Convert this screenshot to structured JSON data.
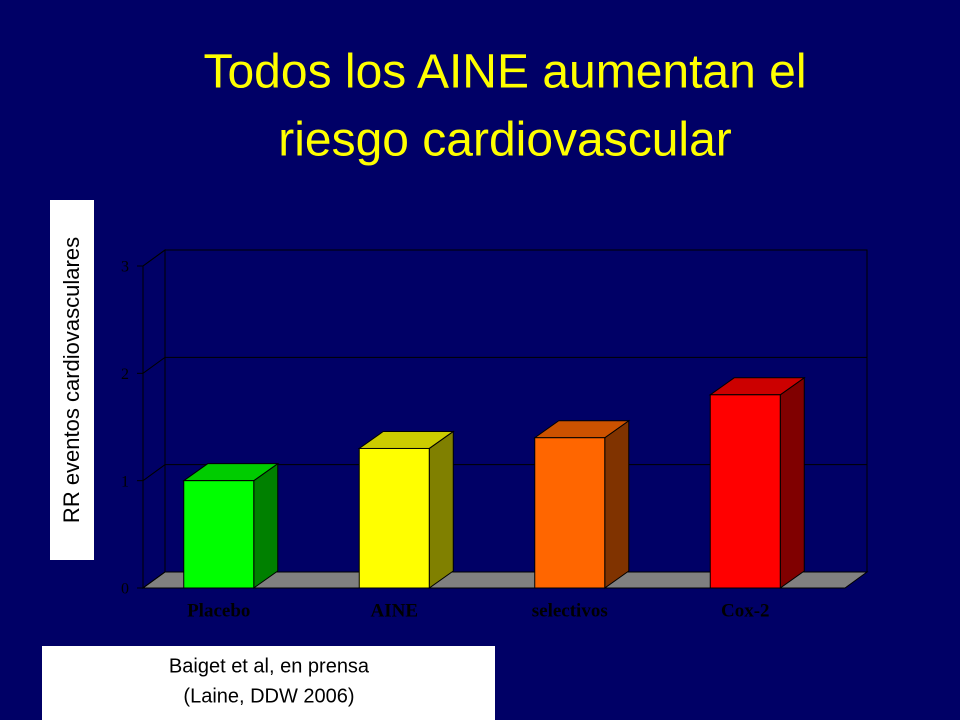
{
  "chart_data": {
    "type": "bar3d",
    "title": [
      "Todos los AINE aumentan el",
      "riesgo cardiovascular"
    ],
    "y_label": "RR eventos cardiovasculares",
    "source": [
      "Baiget et al, en prensa",
      "(Laine, DDW 2006)"
    ],
    "categories": [
      "Placebo",
      "AINE",
      "selectivos",
      "Cox-2"
    ],
    "values": [
      1.0,
      1.3,
      1.4,
      1.8
    ],
    "colors": [
      "#00ff00",
      "#ffff00",
      "#ff6600",
      "#ff0000"
    ],
    "ylim": [
      0,
      3
    ],
    "yticks": [
      0,
      1,
      2,
      3
    ],
    "grid": true
  }
}
